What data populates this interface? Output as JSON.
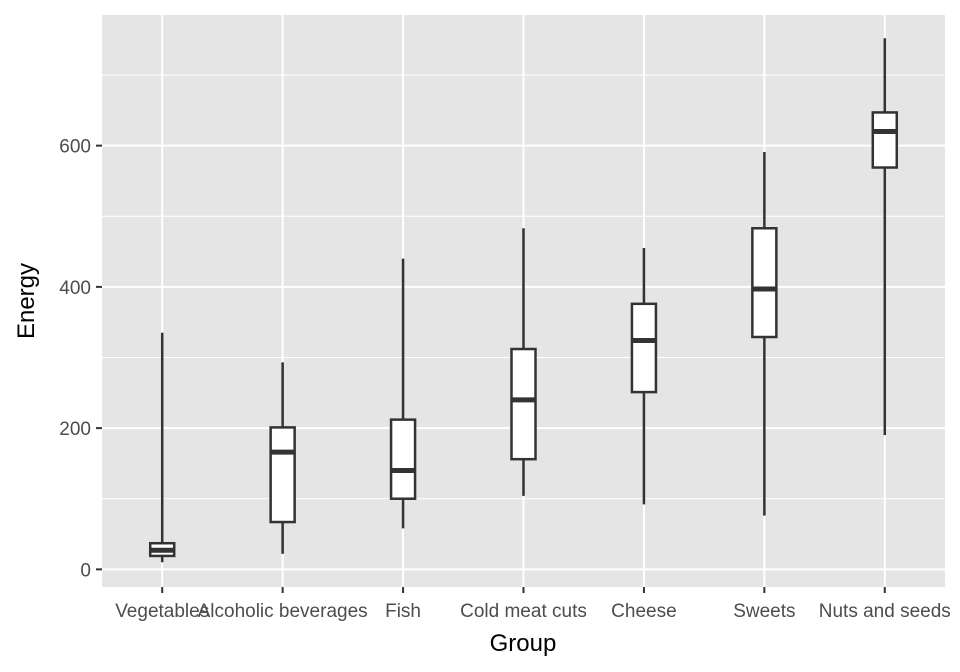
{
  "chart_data": {
    "type": "box",
    "xlabel": "Group",
    "ylabel": "Energy",
    "ylim": [
      -25,
      785
    ],
    "yticks": [
      0,
      200,
      400,
      600
    ],
    "ytick_labels": [
      "0",
      "200",
      "400",
      "600"
    ],
    "grid": true,
    "legend": "none",
    "categories": [
      "Vegetables",
      "Alcoholic beverages",
      "Fish",
      "Cold meat cuts",
      "Cheese",
      "Sweets",
      "Nuts and seeds"
    ],
    "boxes": [
      {
        "category": "Vegetables",
        "min": 10,
        "q1": 19,
        "median": 27,
        "q3": 37,
        "max": 335
      },
      {
        "category": "Alcoholic beverages",
        "min": 22,
        "q1": 67,
        "median": 166,
        "q3": 201,
        "max": 293
      },
      {
        "category": "Fish",
        "min": 58,
        "q1": 100,
        "median": 140,
        "q3": 212,
        "max": 440
      },
      {
        "category": "Cold meat cuts",
        "min": 104,
        "q1": 156,
        "median": 240,
        "q3": 312,
        "max": 483
      },
      {
        "category": "Cheese",
        "min": 92,
        "q1": 251,
        "median": 324,
        "q3": 376,
        "max": 455
      },
      {
        "category": "Sweets",
        "min": 76,
        "q1": 329,
        "median": 397,
        "q3": 483,
        "max": 591
      },
      {
        "category": "Nuts and seeds",
        "min": 190,
        "q1": 569,
        "median": 620,
        "q3": 647,
        "max": 752
      }
    ],
    "colors": {
      "panel_background": "#e5e5e5",
      "grid_line": "#ffffff",
      "box_fill": "#ffffff",
      "box_stroke": "#333333",
      "tick_mark": "#333333",
      "tick_text": "#4d4d4d"
    }
  }
}
